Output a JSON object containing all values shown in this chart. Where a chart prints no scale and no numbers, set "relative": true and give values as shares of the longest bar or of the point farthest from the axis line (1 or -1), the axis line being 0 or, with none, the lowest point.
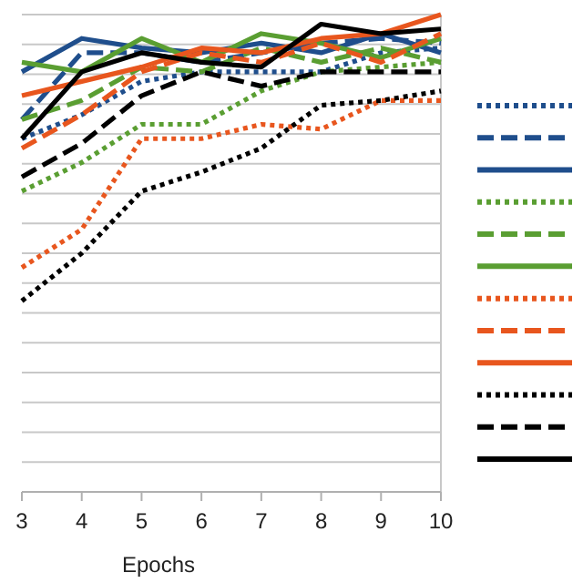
{
  "chart_data": {
    "type": "line",
    "xlabel": "Epochs",
    "x": [
      3,
      4,
      5,
      6,
      7,
      8,
      9,
      10
    ],
    "xlim": [
      3,
      10
    ],
    "xticks": [
      3,
      4,
      5,
      6,
      7,
      8,
      9,
      10
    ],
    "relative": true,
    "grid": "y",
    "series": [
      {
        "color": "#1f4e8c",
        "line_style": "dotted",
        "values": [
          0.74,
          0.79,
          0.86,
          0.88,
          0.88,
          0.88,
          0.92,
          0.93
        ]
      },
      {
        "color": "#1f4e8c",
        "line_style": "dashed",
        "values": [
          0.78,
          0.92,
          0.92,
          0.9,
          0.92,
          0.94,
          0.95,
          0.94
        ]
      },
      {
        "color": "#1f4e8c",
        "line_style": "solid",
        "values": [
          0.88,
          0.95,
          0.93,
          0.92,
          0.94,
          0.92,
          0.96,
          0.92
        ]
      },
      {
        "color": "#5a9e32",
        "line_style": "dotted",
        "values": [
          0.63,
          0.69,
          0.77,
          0.77,
          0.84,
          0.88,
          0.89,
          0.9
        ]
      },
      {
        "color": "#5a9e32",
        "line_style": "dashed",
        "values": [
          0.78,
          0.82,
          0.89,
          0.88,
          0.93,
          0.9,
          0.93,
          0.9
        ]
      },
      {
        "color": "#5a9e32",
        "line_style": "solid",
        "values": [
          0.9,
          0.88,
          0.95,
          0.9,
          0.96,
          0.94,
          0.91,
          0.95
        ]
      },
      {
        "color": "#e8561e",
        "line_style": "dotted",
        "values": [
          0.47,
          0.55,
          0.74,
          0.74,
          0.77,
          0.76,
          0.82,
          0.82
        ]
      },
      {
        "color": "#e8561e",
        "line_style": "dashed",
        "values": [
          0.72,
          0.79,
          0.88,
          0.92,
          0.9,
          0.94,
          0.9,
          0.96
        ]
      },
      {
        "color": "#e8561e",
        "line_style": "solid",
        "values": [
          0.83,
          0.86,
          0.89,
          0.93,
          0.92,
          0.95,
          0.96,
          1
        ]
      },
      {
        "color": "#000000",
        "line_style": "dotted",
        "values": [
          0.4,
          0.5,
          0.63,
          0.67,
          0.72,
          0.81,
          0.82,
          0.84
        ]
      },
      {
        "color": "#000000",
        "line_style": "dashed",
        "values": [
          0.66,
          0.73,
          0.83,
          0.88,
          0.85,
          0.88,
          0.88,
          0.88
        ]
      },
      {
        "color": "#000000",
        "line_style": "solid",
        "values": [
          0.74,
          0.88,
          0.92,
          0.9,
          0.89,
          0.98,
          0.96,
          0.97
        ]
      }
    ]
  }
}
